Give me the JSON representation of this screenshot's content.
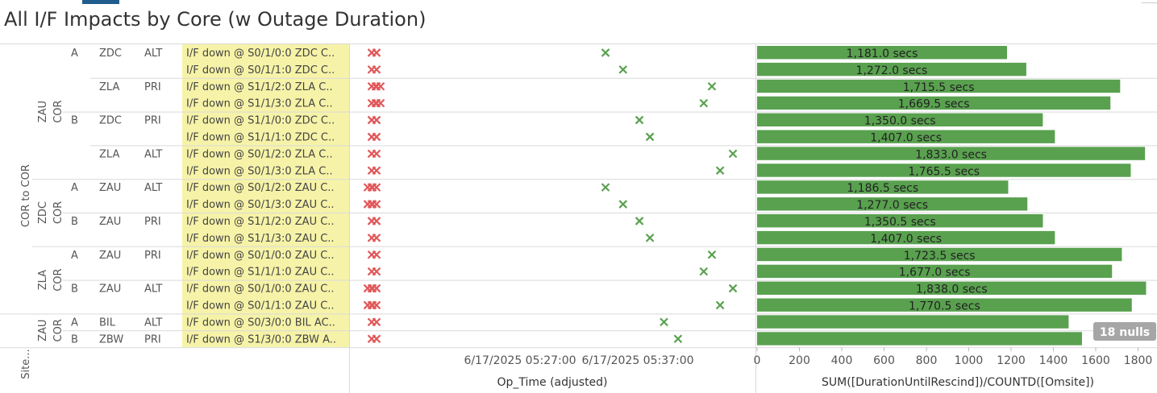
{
  "title": "All I/F Impacts by Core (w Outage Duration)",
  "colors": {
    "bar": "#59a14f",
    "green_mark": "#59a14f",
    "red_mark": "#e15759",
    "desc_highlight": "#f6f3a8",
    "grid": "#d9d9d9",
    "nulls_badge": "#a6a6a6"
  },
  "groups": {
    "level1": [
      {
        "label": "COR to COR",
        "rows": [
          0,
          17
        ]
      },
      {
        "label": "Site...",
        "rows": [
          18,
          19
        ]
      }
    ],
    "level2": [
      {
        "label": "ZAU COR",
        "rows": [
          0,
          7
        ]
      },
      {
        "label": "ZDC COR",
        "rows": [
          8,
          11
        ]
      },
      {
        "label": "ZLA COR",
        "rows": [
          12,
          15
        ]
      },
      {
        "label": "ZAU COR",
        "rows": [
          16,
          17
        ]
      }
    ]
  },
  "nulls_badge": "18 nulls",
  "chart_data": {
    "type": "bar",
    "xlabel": "SUM([DurationUntilRescind])/COUNTD([Omsite])",
    "x_ticks": [
      "0",
      "200",
      "400",
      "600",
      "800",
      "1000",
      "1200",
      "1400",
      "1600",
      "1800"
    ],
    "xlim": [
      0,
      1850
    ],
    "scatter_axis": {
      "label": "Op_Time (adjusted)",
      "ticks": [
        "6/17/2025 05:27:00",
        "6/17/2025 05:37:00"
      ]
    },
    "rows": [
      {
        "side": "A",
        "peer": "ZDC",
        "type": "ALT",
        "desc": "I/F down @ S0/1/0:0 ZDC C..",
        "value": 1181.0,
        "label": "1,181.0 secs",
        "green": 0.0,
        "red": [
          0
        ]
      },
      {
        "side": "",
        "peer": "",
        "type": "",
        "desc": "I/F down @ S0/1/1:0 ZDC C..",
        "value": 1272.0,
        "label": "1,272.0 secs",
        "green": 1.5,
        "red": [
          0
        ]
      },
      {
        "side": "",
        "peer": "ZLA",
        "type": "PRI",
        "desc": "I/F down @ S1/1/2:0 ZLA C..",
        "value": 1715.5,
        "label": "1,715.5 secs",
        "green": 9.1,
        "red": [
          0,
          0.05
        ]
      },
      {
        "side": "",
        "peer": "",
        "type": "",
        "desc": "I/F down @ S1/1/3:0 ZLA C..",
        "value": 1669.5,
        "label": "1,669.5 secs",
        "green": 8.4,
        "red": [
          0,
          0.05
        ]
      },
      {
        "side": "B",
        "peer": "ZDC",
        "type": "PRI",
        "desc": "I/F down @ S1/1/0:0 ZDC C..",
        "value": 1350.0,
        "label": "1,350.0 secs",
        "green": 2.9,
        "red": [
          0
        ]
      },
      {
        "side": "",
        "peer": "",
        "type": "",
        "desc": "I/F down @ S1/1/1:0 ZDC C..",
        "value": 1407.0,
        "label": "1,407.0 secs",
        "green": 3.8,
        "red": [
          0
        ]
      },
      {
        "side": "",
        "peer": "ZLA",
        "type": "ALT",
        "desc": "I/F down @ S0/1/2:0 ZLA C..",
        "value": 1833.0,
        "label": "1,833.0 secs",
        "green": 10.9,
        "red": [
          0
        ]
      },
      {
        "side": "",
        "peer": "",
        "type": "",
        "desc": "I/F down @ S0/1/3:0 ZLA C..",
        "value": 1765.5,
        "label": "1,765.5 secs",
        "green": 9.8,
        "red": [
          0
        ]
      },
      {
        "side": "A",
        "peer": "ZAU",
        "type": "ALT",
        "desc": "I/F down @ S0/1/2:0 ZAU C..",
        "value": 1186.5,
        "label": "1,186.5 secs",
        "green": 0.0,
        "red": [
          0,
          -0.05
        ]
      },
      {
        "side": "",
        "peer": "",
        "type": "",
        "desc": "I/F down @ S0/1/3:0 ZAU C..",
        "value": 1277.0,
        "label": "1,277.0 secs",
        "green": 1.5,
        "red": [
          0,
          -0.05
        ]
      },
      {
        "side": "B",
        "peer": "ZAU",
        "type": "PRI",
        "desc": "I/F down @ S1/1/2:0 ZAU C..",
        "value": 1350.5,
        "label": "1,350.5 secs",
        "green": 2.9,
        "red": [
          0
        ]
      },
      {
        "side": "",
        "peer": "",
        "type": "",
        "desc": "I/F down @ S1/1/3:0 ZAU C..",
        "value": 1407.0,
        "label": "1,407.0 secs",
        "green": 3.8,
        "red": [
          0
        ]
      },
      {
        "side": "A",
        "peer": "ZAU",
        "type": "PRI",
        "desc": "I/F down @ S0/1/0:0 ZAU C..",
        "value": 1723.5,
        "label": "1,723.5 secs",
        "green": 9.1,
        "red": [
          0
        ]
      },
      {
        "side": "",
        "peer": "",
        "type": "",
        "desc": "I/F down @ S1/1/1:0 ZAU C..",
        "value": 1677.0,
        "label": "1,677.0 secs",
        "green": 8.4,
        "red": [
          0
        ]
      },
      {
        "side": "B",
        "peer": "ZAU",
        "type": "ALT",
        "desc": "I/F down @ S0/1/0:0 ZAU C..",
        "value": 1838.0,
        "label": "1,838.0 secs",
        "green": 10.9,
        "red": [
          0,
          -0.05
        ]
      },
      {
        "side": "",
        "peer": "",
        "type": "",
        "desc": "I/F down @ S0/1/1:0 ZAU C..",
        "value": 1770.5,
        "label": "1,770.5 secs",
        "green": 9.8,
        "red": [
          0,
          -0.05
        ]
      },
      {
        "side": "A",
        "peer": "BIL",
        "type": "ALT",
        "desc": "I/F down @ S0/3/0:0 BIL AC..",
        "value": 1472,
        "label": "",
        "green": 5.0,
        "red": [
          0
        ]
      },
      {
        "side": "B",
        "peer": "ZBW",
        "type": "PRI",
        "desc": "I/F down @ S1/3/0:0 ZBW A..",
        "value": 1535,
        "label": "",
        "green": 6.2,
        "red": [
          0
        ]
      }
    ]
  }
}
